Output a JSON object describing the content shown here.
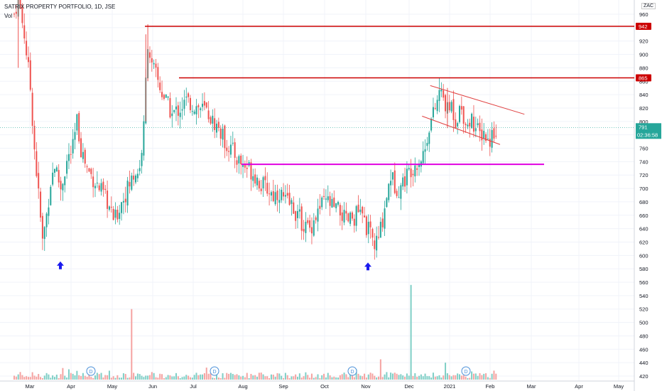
{
  "chart_title": "SATRIX PROPERTY PORTFOLIO, 1D, JSE",
  "vol_label": "Vol",
  "currency": "ZAC",
  "price_tag": "791",
  "countdown_tag": "02:36:58",
  "colors": {
    "up": "#26a69a",
    "down": "#ef5350",
    "up_vol": "#7fcfc6",
    "down_vol": "#f5a3a1",
    "resistance": "#cc0000",
    "support": "#e000e0",
    "channel": "#e04040",
    "arrow": "#1a1aee",
    "price_tag": "#26a69a",
    "dividend": "#4a90d9"
  },
  "chart_data": {
    "type": "candlestick",
    "title": "SATRIX PROPERTY PORTFOLIO, 1D, JSE",
    "x_ticks": [
      "Mar",
      "Apr",
      "May",
      "Jun",
      "Jul",
      "Aug",
      "Sep",
      "Oct",
      "Nov",
      "Dec",
      "2021",
      "Feb",
      "Mar",
      "Apr",
      "May"
    ],
    "y_ticks": [
      420,
      440,
      460,
      480,
      500,
      520,
      540,
      560,
      580,
      600,
      620,
      640,
      660,
      680,
      700,
      720,
      740,
      760,
      780,
      800,
      820,
      840,
      860,
      880,
      900,
      920,
      940,
      960
    ],
    "ylim": [
      410,
      980
    ],
    "horizontal_levels": [
      {
        "value": 942,
        "label": "942",
        "color": "#cc0000"
      },
      {
        "value": 865,
        "label": "865",
        "color": "#cc0000"
      },
      {
        "value": 736,
        "label": "",
        "color": "#e000e0"
      }
    ],
    "last_price": 791,
    "dividend_marker": "D",
    "price_path": [
      [
        0,
        960
      ],
      [
        2,
        985
      ],
      [
        5,
        930
      ],
      [
        8,
        850
      ],
      [
        10,
        760
      ],
      [
        12,
        690
      ],
      [
        14,
        620
      ],
      [
        16,
        660
      ],
      [
        18,
        710
      ],
      [
        20,
        735
      ],
      [
        23,
        700
      ],
      [
        26,
        740
      ],
      [
        29,
        760
      ],
      [
        31,
        800
      ],
      [
        33,
        760
      ],
      [
        36,
        730
      ],
      [
        39,
        715
      ],
      [
        42,
        700
      ],
      [
        44,
        690
      ],
      [
        46,
        680
      ],
      [
        48,
        660
      ],
      [
        50,
        655
      ],
      [
        53,
        680
      ],
      [
        56,
        700
      ],
      [
        59,
        720
      ],
      [
        62,
        730
      ],
      [
        64,
        790
      ],
      [
        65,
        860
      ],
      [
        66,
        920
      ],
      [
        68,
        880
      ],
      [
        70,
        870
      ],
      [
        72,
        850
      ],
      [
        75,
        830
      ],
      [
        78,
        810
      ],
      [
        82,
        820
      ],
      [
        85,
        830
      ],
      [
        88,
        825
      ],
      [
        92,
        820
      ],
      [
        95,
        815
      ],
      [
        98,
        800
      ],
      [
        101,
        790
      ],
      [
        104,
        770
      ],
      [
        107,
        760
      ],
      [
        110,
        745
      ],
      [
        113,
        735
      ],
      [
        116,
        730
      ],
      [
        119,
        720
      ],
      [
        122,
        705
      ],
      [
        125,
        700
      ],
      [
        128,
        690
      ],
      [
        131,
        695
      ],
      [
        134,
        680
      ],
      [
        137,
        675
      ],
      [
        140,
        660
      ],
      [
        143,
        645
      ],
      [
        146,
        640
      ],
      [
        149,
        660
      ],
      [
        152,
        675
      ],
      [
        155,
        680
      ],
      [
        158,
        670
      ],
      [
        161,
        665
      ],
      [
        164,
        650
      ],
      [
        167,
        655
      ],
      [
        170,
        665
      ],
      [
        173,
        650
      ],
      [
        176,
        630
      ],
      [
        178,
        615
      ],
      [
        180,
        625
      ],
      [
        182,
        655
      ],
      [
        184,
        690
      ],
      [
        186,
        720
      ],
      [
        188,
        705
      ],
      [
        190,
        700
      ],
      [
        193,
        715
      ],
      [
        196,
        730
      ],
      [
        199,
        740
      ],
      [
        201,
        745
      ],
      [
        203,
        760
      ],
      [
        205,
        795
      ],
      [
        207,
        810
      ],
      [
        209,
        830
      ],
      [
        210,
        845
      ],
      [
        212,
        835
      ],
      [
        214,
        815
      ],
      [
        216,
        825
      ],
      [
        218,
        800
      ],
      [
        220,
        820
      ],
      [
        222,
        810
      ],
      [
        224,
        795
      ],
      [
        226,
        805
      ],
      [
        228,
        790
      ],
      [
        230,
        780
      ],
      [
        232,
        785
      ],
      [
        234,
        770
      ],
      [
        236,
        780
      ],
      [
        238,
        790
      ]
    ],
    "volume_spikes": [
      {
        "index": 58,
        "volume": 520
      },
      {
        "index": 196,
        "volume": 556
      },
      {
        "index": 24,
        "volume": 432
      },
      {
        "index": 213,
        "volume": 440
      },
      {
        "index": 181,
        "volume": 445
      }
    ],
    "dividends": [
      {
        "index": 30
      },
      {
        "index": 95
      },
      {
        "index": 177
      },
      {
        "index": 231
      }
    ],
    "arrows": [
      {
        "index": 16,
        "value": 590
      },
      {
        "index": 180,
        "value": 582
      }
    ],
    "channel": {
      "upper": [
        [
          202,
          845
        ],
        [
          238,
          798
        ]
      ],
      "lower": [
        [
          205,
          810
        ],
        [
          240,
          755
        ]
      ]
    }
  }
}
